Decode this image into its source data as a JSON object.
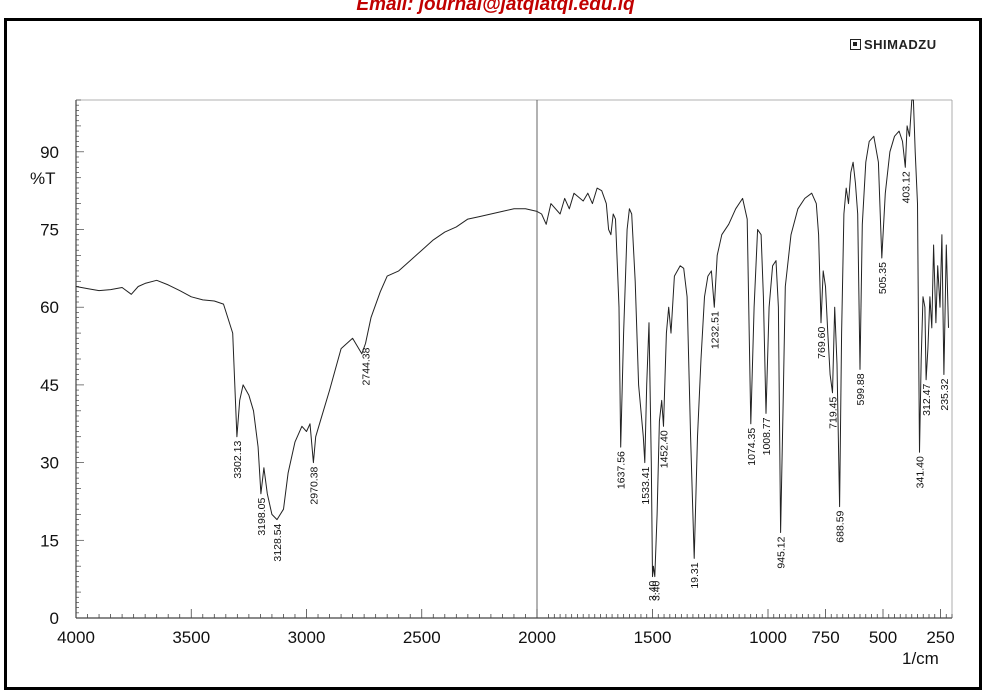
{
  "header": {
    "text": "Email: journal@jatqlatql.edu.iq"
  },
  "brand": {
    "name": "SHIMADZU"
  },
  "chart_data": {
    "type": "line",
    "title": "",
    "xlabel": "1/cm",
    "ylabel": "%T",
    "xlim": [
      4000,
      200
    ],
    "ylim": [
      0,
      100
    ],
    "grid": false,
    "x_ticks": [
      "4000",
      "3500",
      "3000",
      "2500",
      "2000",
      "1500",
      "1000",
      "750",
      "500",
      "250"
    ],
    "y_ticks": [
      "0",
      "15",
      "30",
      "45",
      "60",
      "75",
      "90"
    ],
    "series": [
      {
        "color": "#222222",
        "points": [
          [
            4000,
            64
          ],
          [
            3950,
            63.6
          ],
          [
            3900,
            63.2
          ],
          [
            3850,
            63.4
          ],
          [
            3800,
            63.8
          ],
          [
            3760,
            62.5
          ],
          [
            3730,
            64
          ],
          [
            3700,
            64.6
          ],
          [
            3650,
            65.2
          ],
          [
            3600,
            64.3
          ],
          [
            3550,
            63.2
          ],
          [
            3500,
            62
          ],
          [
            3450,
            61.4
          ],
          [
            3400,
            61.2
          ],
          [
            3360,
            60.6
          ],
          [
            3320,
            55
          ],
          [
            3302,
            35
          ],
          [
            3290,
            42
          ],
          [
            3275,
            45
          ],
          [
            3250,
            43
          ],
          [
            3230,
            40
          ],
          [
            3210,
            33
          ],
          [
            3198,
            24
          ],
          [
            3185,
            29
          ],
          [
            3170,
            24
          ],
          [
            3150,
            20
          ],
          [
            3128,
            19
          ],
          [
            3100,
            21
          ],
          [
            3080,
            28
          ],
          [
            3050,
            34
          ],
          [
            3020,
            37
          ],
          [
            3000,
            36
          ],
          [
            2985,
            37.5
          ],
          [
            2970,
            30
          ],
          [
            2960,
            35
          ],
          [
            2940,
            38
          ],
          [
            2900,
            44
          ],
          [
            2850,
            52
          ],
          [
            2800,
            54
          ],
          [
            2760,
            51
          ],
          [
            2744,
            53
          ],
          [
            2720,
            58
          ],
          [
            2680,
            63
          ],
          [
            2650,
            66
          ],
          [
            2600,
            67
          ],
          [
            2550,
            69
          ],
          [
            2500,
            71
          ],
          [
            2450,
            73
          ],
          [
            2400,
            74.5
          ],
          [
            2350,
            75.5
          ],
          [
            2300,
            77
          ],
          [
            2250,
            77.5
          ],
          [
            2200,
            78
          ],
          [
            2150,
            78.5
          ],
          [
            2100,
            79
          ],
          [
            2050,
            79
          ],
          [
            2000,
            78.5
          ],
          [
            1980,
            78
          ],
          [
            1960,
            76
          ],
          [
            1940,
            80
          ],
          [
            1900,
            78
          ],
          [
            1880,
            81
          ],
          [
            1860,
            79
          ],
          [
            1840,
            82
          ],
          [
            1800,
            80.5
          ],
          [
            1780,
            82
          ],
          [
            1760,
            80
          ],
          [
            1740,
            83
          ],
          [
            1720,
            82.5
          ],
          [
            1700,
            80
          ],
          [
            1690,
            75
          ],
          [
            1680,
            74
          ],
          [
            1670,
            78
          ],
          [
            1660,
            77
          ],
          [
            1645,
            60
          ],
          [
            1637.56,
            33
          ],
          [
            1625,
            55
          ],
          [
            1610,
            75
          ],
          [
            1600,
            79
          ],
          [
            1590,
            78
          ],
          [
            1575,
            65
          ],
          [
            1560,
            45
          ],
          [
            1540,
            35
          ],
          [
            1533.41,
            30
          ],
          [
            1525,
            45
          ],
          [
            1515,
            57
          ],
          [
            1505,
            30
          ],
          [
            1500,
            8
          ],
          [
            1496,
            10
          ],
          [
            1490,
            8
          ],
          [
            1480,
            20
          ],
          [
            1470,
            38
          ],
          [
            1460,
            42
          ],
          [
            1452.4,
            37
          ],
          [
            1440,
            55
          ],
          [
            1430,
            60
          ],
          [
            1420,
            55
          ],
          [
            1405,
            66
          ],
          [
            1380,
            68
          ],
          [
            1365,
            67.5
          ],
          [
            1350,
            62
          ],
          [
            1335,
            35
          ],
          [
            1319.31,
            11.5
          ],
          [
            1305,
            35
          ],
          [
            1290,
            50
          ],
          [
            1275,
            62
          ],
          [
            1260,
            66
          ],
          [
            1245,
            67
          ],
          [
            1232.51,
            60
          ],
          [
            1220,
            70
          ],
          [
            1200,
            74
          ],
          [
            1170,
            76
          ],
          [
            1140,
            79
          ],
          [
            1110,
            81
          ],
          [
            1090,
            77
          ],
          [
            1074.35,
            37.5
          ],
          [
            1060,
            60
          ],
          [
            1045,
            75
          ],
          [
            1030,
            74
          ],
          [
            1020,
            62
          ],
          [
            1008.77,
            39.5
          ],
          [
            995,
            60
          ],
          [
            980,
            68
          ],
          [
            965,
            69
          ],
          [
            955,
            60
          ],
          [
            945.12,
            16.5
          ],
          [
            935,
            40
          ],
          [
            925,
            64
          ],
          [
            900,
            74
          ],
          [
            870,
            79
          ],
          [
            840,
            81
          ],
          [
            810,
            82
          ],
          [
            790,
            80
          ],
          [
            780,
            74
          ],
          [
            769.6,
            57
          ],
          [
            760,
            67
          ],
          [
            750,
            64
          ],
          [
            740,
            55
          ],
          [
            730,
            47
          ],
          [
            719.45,
            43.5
          ],
          [
            710,
            60
          ],
          [
            700,
            49
          ],
          [
            688.59,
            21.5
          ],
          [
            680,
            55
          ],
          [
            670,
            78
          ],
          [
            660,
            83
          ],
          [
            650,
            80
          ],
          [
            640,
            86
          ],
          [
            630,
            88
          ],
          [
            620,
            84
          ],
          [
            610,
            78
          ],
          [
            599.88,
            48
          ],
          [
            590,
            76
          ],
          [
            575,
            88
          ],
          [
            560,
            92
          ],
          [
            540,
            93
          ],
          [
            520,
            88
          ],
          [
            505.35,
            69.5
          ],
          [
            490,
            82
          ],
          [
            470,
            90
          ],
          [
            450,
            93
          ],
          [
            430,
            94
          ],
          [
            415,
            92
          ],
          [
            403.12,
            87
          ],
          [
            395,
            95
          ],
          [
            385,
            93
          ],
          [
            375,
            100
          ],
          [
            368,
            100
          ],
          [
            360,
            90
          ],
          [
            350,
            80
          ],
          [
            341.4,
            32
          ],
          [
            334,
            50
          ],
          [
            326,
            62
          ],
          [
            318,
            60
          ],
          [
            312.47,
            46
          ],
          [
            305,
            52
          ],
          [
            296,
            62
          ],
          [
            288,
            56
          ],
          [
            280,
            72
          ],
          [
            270,
            57
          ],
          [
            262,
            68
          ],
          [
            252,
            60
          ],
          [
            244,
            74
          ],
          [
            235.32,
            47
          ],
          [
            225,
            72
          ],
          [
            215,
            56
          ]
        ]
      }
    ],
    "annotations": [
      {
        "text": "3302.13",
        "x": 3302.13,
        "y": 35
      },
      {
        "text": "3198.05",
        "x": 3198.05,
        "y": 24
      },
      {
        "text": "3128.54",
        "x": 3128.54,
        "y": 19
      },
      {
        "text": "2970.38",
        "x": 2970.38,
        "y": 30
      },
      {
        "text": "2744.38",
        "x": 2744.38,
        "y": 53
      },
      {
        "text": "1637.56",
        "x": 1637.56,
        "y": 33
      },
      {
        "text": "1533.41",
        "x": 1533.41,
        "y": 30
      },
      {
        "text": "3.40",
        "x": 1503,
        "y": 8
      },
      {
        "text": "3.40",
        "x": 1488,
        "y": 8
      },
      {
        "text": "1452.40",
        "x": 1452.4,
        "y": 37
      },
      {
        "text": "19.31",
        "x": 1319.31,
        "y": 11.5
      },
      {
        "text": "1232.51",
        "x": 1232.51,
        "y": 60
      },
      {
        "text": "1074.35",
        "x": 1074.35,
        "y": 37.5
      },
      {
        "text": "1008.77",
        "x": 1008.77,
        "y": 39.5
      },
      {
        "text": "945.12",
        "x": 945.12,
        "y": 16.5
      },
      {
        "text": "769.60",
        "x": 769.6,
        "y": 57
      },
      {
        "text": "719.45",
        "x": 719.45,
        "y": 43.5
      },
      {
        "text": "688.59",
        "x": 688.59,
        "y": 21.5
      },
      {
        "text": "599.88",
        "x": 599.88,
        "y": 48
      },
      {
        "text": "505.35",
        "x": 505.35,
        "y": 69.5
      },
      {
        "text": "403.12",
        "x": 403.12,
        "y": 87
      },
      {
        "text": "341.40",
        "x": 341.4,
        "y": 32
      },
      {
        "text": "312.47",
        "x": 312.47,
        "y": 46
      },
      {
        "text": "235.32",
        "x": 235.32,
        "y": 47
      }
    ]
  }
}
